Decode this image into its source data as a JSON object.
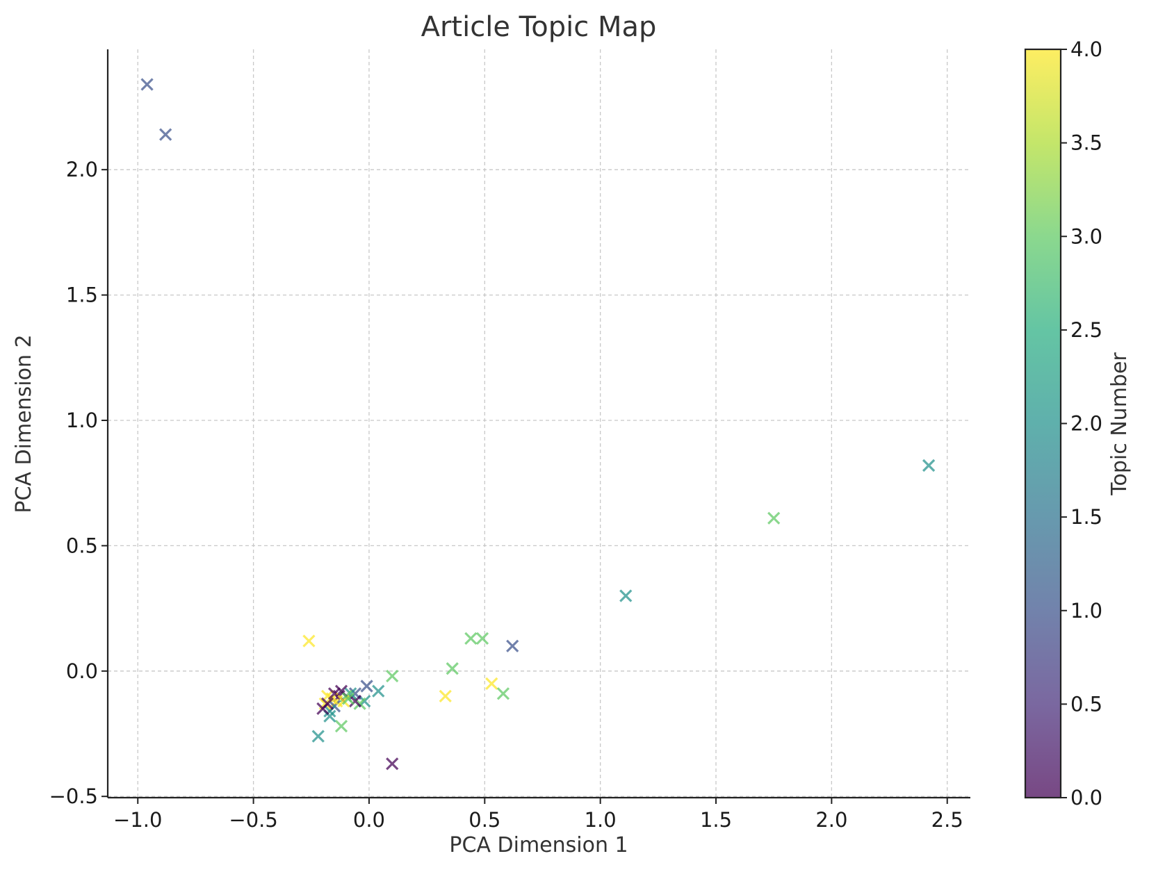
{
  "chart_data": {
    "type": "scatter",
    "title": "Article Topic Map",
    "xlabel": "PCA Dimension 1",
    "ylabel": "PCA Dimension 2",
    "xlim": [
      -1.13,
      2.6
    ],
    "ylim": [
      -0.505,
      2.48
    ],
    "xticks": [
      -1.0,
      -0.5,
      0.0,
      0.5,
      1.0,
      1.5,
      2.0,
      2.5
    ],
    "xtick_labels": [
      "−1.0",
      "−0.5",
      "0.0",
      "0.5",
      "1.0",
      "1.5",
      "2.0",
      "2.5"
    ],
    "yticks": [
      -0.5,
      0.0,
      0.5,
      1.0,
      1.5,
      2.0
    ],
    "ytick_labels": [
      "−0.5",
      "0.0",
      "0.5",
      "1.0",
      "1.5",
      "2.0"
    ],
    "grid": true,
    "marker": "x",
    "colormap": "viridis",
    "colorbar": {
      "label": "Topic Number",
      "range": [
        0.0,
        4.0
      ],
      "ticks": [
        0.0,
        0.5,
        1.0,
        1.5,
        2.0,
        2.5,
        3.0,
        3.5,
        4.0
      ],
      "tick_labels": [
        "0.0",
        "0.5",
        "1.0",
        "1.5",
        "2.0",
        "2.5",
        "3.0",
        "3.5",
        "4.0"
      ]
    },
    "points": [
      {
        "x": -0.96,
        "y": 2.34,
        "topic": 1
      },
      {
        "x": -0.88,
        "y": 2.14,
        "topic": 1
      },
      {
        "x": 2.42,
        "y": 0.82,
        "topic": 2
      },
      {
        "x": 1.75,
        "y": 0.61,
        "topic": 3
      },
      {
        "x": 1.11,
        "y": 0.3,
        "topic": 2
      },
      {
        "x": 0.62,
        "y": 0.1,
        "topic": 1
      },
      {
        "x": 0.44,
        "y": 0.13,
        "topic": 3
      },
      {
        "x": 0.49,
        "y": 0.13,
        "topic": 3
      },
      {
        "x": 0.36,
        "y": 0.01,
        "topic": 3
      },
      {
        "x": 0.1,
        "y": -0.02,
        "topic": 3
      },
      {
        "x": 0.53,
        "y": -0.05,
        "topic": 4
      },
      {
        "x": 0.58,
        "y": -0.09,
        "topic": 3
      },
      {
        "x": 0.33,
        "y": -0.1,
        "topic": 4
      },
      {
        "x": -0.26,
        "y": 0.12,
        "topic": 4
      },
      {
        "x": 0.1,
        "y": -0.37,
        "topic": 0
      },
      {
        "x": -0.22,
        "y": -0.26,
        "topic": 2
      },
      {
        "x": -0.12,
        "y": -0.22,
        "topic": 3
      },
      {
        "x": 0.04,
        "y": -0.08,
        "topic": 2
      },
      {
        "x": -0.01,
        "y": -0.06,
        "topic": 1
      },
      {
        "x": -0.02,
        "y": -0.12,
        "topic": 2
      },
      {
        "x": -0.04,
        "y": -0.13,
        "topic": 3
      },
      {
        "x": -0.06,
        "y": -0.09,
        "topic": 1
      },
      {
        "x": -0.08,
        "y": -0.09,
        "topic": 2
      },
      {
        "x": -0.06,
        "y": -0.12,
        "topic": 0
      },
      {
        "x": -0.1,
        "y": -0.1,
        "topic": 3
      },
      {
        "x": -0.12,
        "y": -0.08,
        "topic": 0
      },
      {
        "x": -0.13,
        "y": -0.1,
        "topic": 0
      },
      {
        "x": -0.14,
        "y": -0.12,
        "topic": 4
      },
      {
        "x": -0.15,
        "y": -0.14,
        "topic": 1
      },
      {
        "x": -0.16,
        "y": -0.11,
        "topic": 4
      },
      {
        "x": -0.17,
        "y": -0.16,
        "topic": 2
      },
      {
        "x": -0.17,
        "y": -0.18,
        "topic": 2
      },
      {
        "x": -0.18,
        "y": -0.1,
        "topic": 4
      },
      {
        "x": -0.19,
        "y": -0.13,
        "topic": 4
      },
      {
        "x": -0.2,
        "y": -0.15,
        "topic": 0
      },
      {
        "x": -0.18,
        "y": -0.13,
        "topic": 0
      },
      {
        "x": -0.15,
        "y": -0.09,
        "topic": 0
      },
      {
        "x": -0.11,
        "y": -0.12,
        "topic": 4
      },
      {
        "x": -0.09,
        "y": -0.11,
        "topic": 3
      }
    ]
  }
}
